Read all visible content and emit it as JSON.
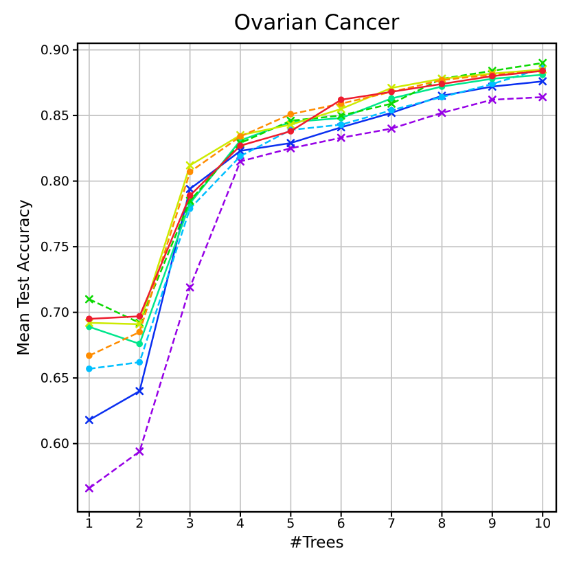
{
  "figure": {
    "title": "Ovarian Cancer",
    "xlabel": "#Trees",
    "ylabel": "Mean Test Accuracy"
  },
  "style": {
    "background": "#ffffff",
    "grid_color": "#c6c6c6",
    "spine_color": "#000000",
    "tick_color": "#000000"
  },
  "chart_data": {
    "type": "line",
    "title": "Ovarian Cancer",
    "xlabel": "#Trees",
    "ylabel": "Mean Test Accuracy",
    "grid": true,
    "legend_position": "none",
    "x": [
      1,
      2,
      3,
      4,
      5,
      6,
      7,
      8,
      9,
      10
    ],
    "xticks": [
      "1",
      "2",
      "3",
      "4",
      "5",
      "6",
      "7",
      "8",
      "9",
      "10"
    ],
    "yticks": [
      0.6,
      0.65,
      0.7,
      0.75,
      0.8,
      0.85,
      0.9
    ],
    "xlim": [
      0.77,
      10.27
    ],
    "ylim": [
      0.548,
      0.905
    ],
    "series": [
      {
        "name": "purple-dashed-x",
        "color": "#9600e6",
        "linestyle": "dashed",
        "marker": "x",
        "values": [
          0.566,
          0.594,
          0.719,
          0.815,
          0.825,
          0.833,
          0.84,
          0.852,
          0.862,
          0.864
        ]
      },
      {
        "name": "blue-solid-x",
        "color": "#0a2ff0",
        "linestyle": "solid",
        "marker": "x",
        "values": [
          0.618,
          0.64,
          0.794,
          0.823,
          0.829,
          0.841,
          0.852,
          0.865,
          0.872,
          0.876
        ]
      },
      {
        "name": "cyan-dashed-circle",
        "color": "#00bfff",
        "linestyle": "dashed",
        "marker": "circle",
        "values": [
          0.657,
          0.662,
          0.779,
          0.819,
          0.839,
          0.843,
          0.854,
          0.864,
          0.874,
          0.886
        ]
      },
      {
        "name": "springgreen-solid-circle",
        "color": "#00e68c",
        "linestyle": "solid",
        "marker": "circle",
        "values": [
          0.689,
          0.676,
          0.783,
          0.831,
          0.845,
          0.848,
          0.863,
          0.872,
          0.878,
          0.881
        ]
      },
      {
        "name": "green-dashed-x",
        "color": "#0ad800",
        "linestyle": "dashed",
        "marker": "x",
        "values": [
          0.71,
          0.692,
          0.785,
          0.829,
          0.846,
          0.85,
          0.859,
          0.878,
          0.884,
          0.89
        ]
      },
      {
        "name": "yellow-solid-x",
        "color": "#cdea00",
        "linestyle": "solid",
        "marker": "x",
        "values": [
          0.692,
          0.691,
          0.812,
          0.835,
          0.843,
          0.855,
          0.871,
          0.878,
          0.882,
          0.885
        ]
      },
      {
        "name": "orange-dashed-circle",
        "color": "#ff8c00",
        "linestyle": "dashed",
        "marker": "circle",
        "values": [
          0.667,
          0.685,
          0.807,
          0.834,
          0.851,
          0.859,
          0.868,
          0.877,
          0.881,
          0.884
        ]
      },
      {
        "name": "red-solid-circle",
        "color": "#ed1c2e",
        "linestyle": "solid",
        "marker": "circle",
        "values": [
          0.695,
          0.697,
          0.789,
          0.827,
          0.838,
          0.862,
          0.868,
          0.874,
          0.88,
          0.884
        ]
      }
    ]
  }
}
